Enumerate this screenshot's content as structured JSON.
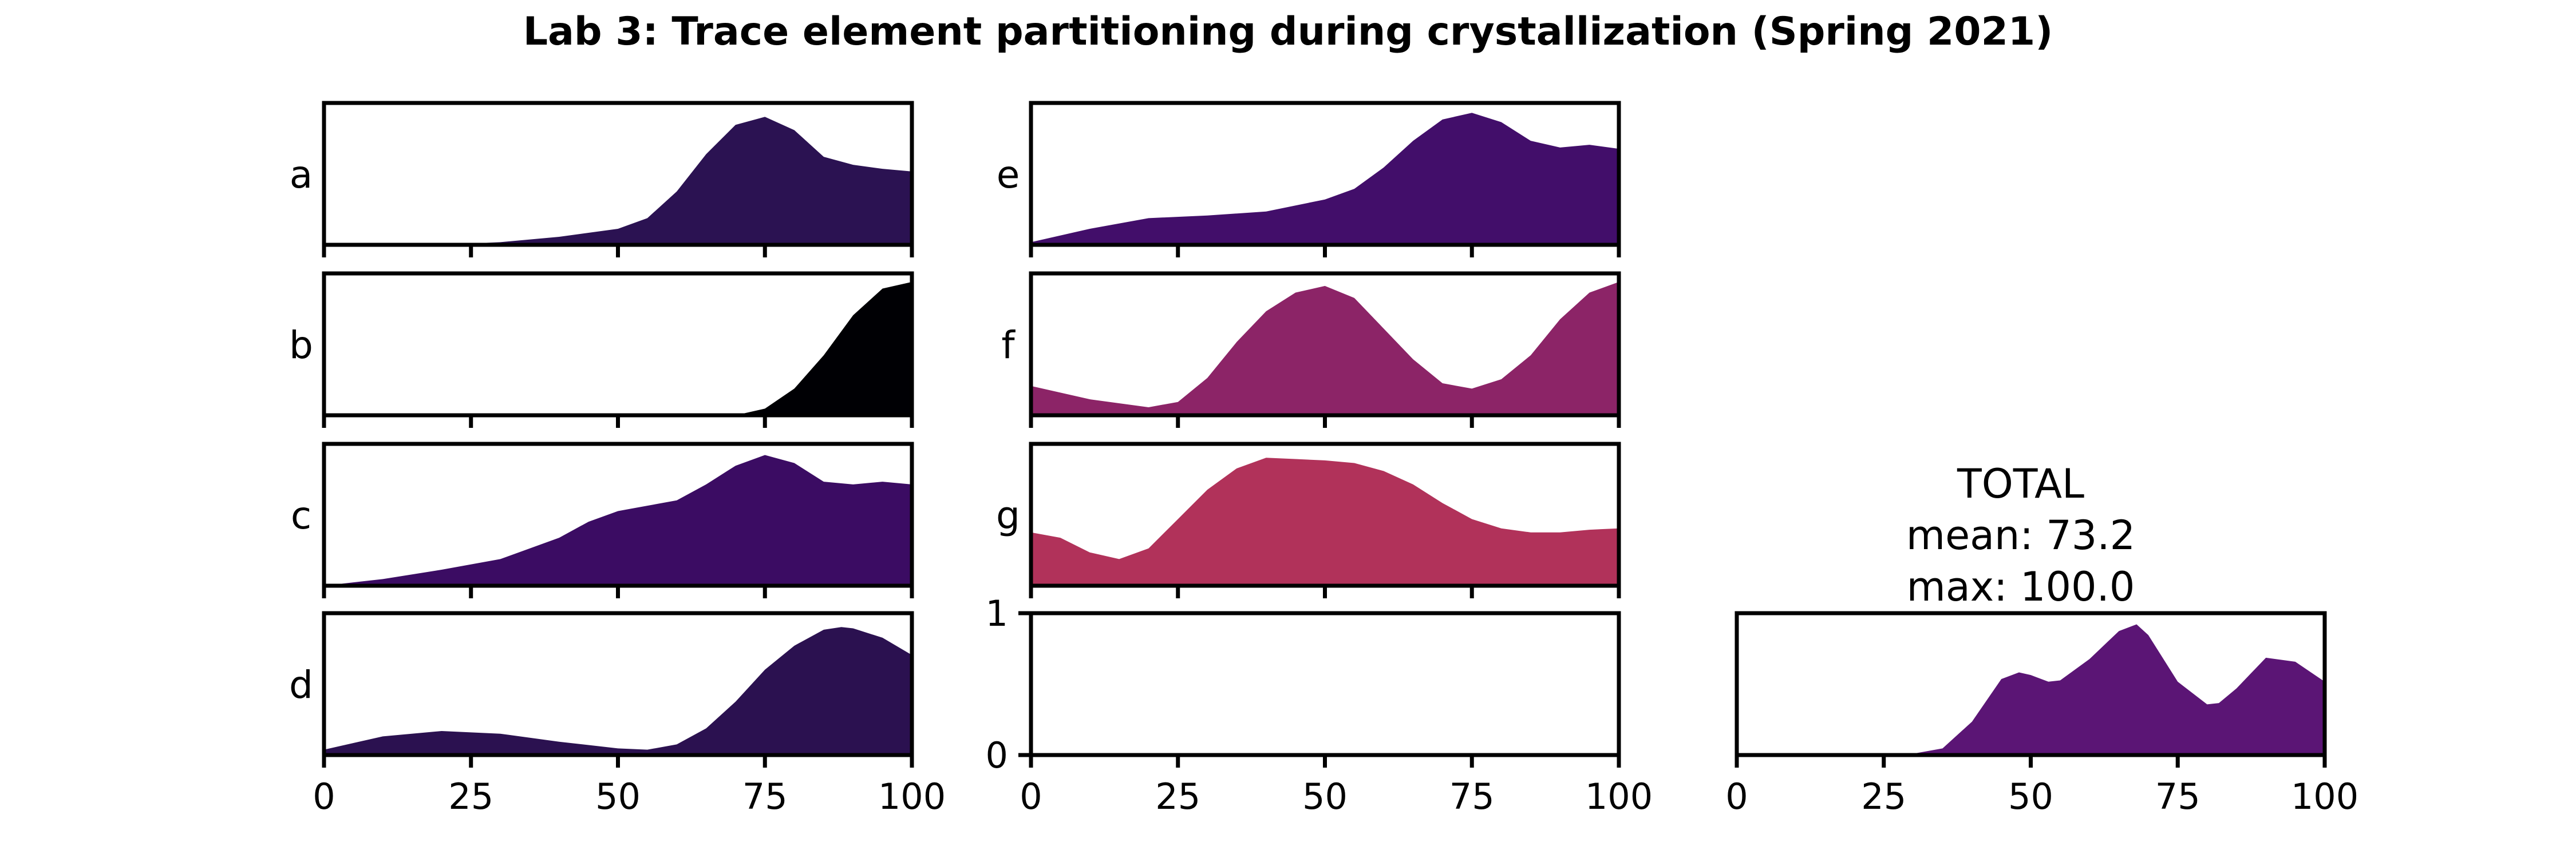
{
  "chart_data": {
    "type": "area",
    "title": "Lab 3: Trace element partitioning during crystallization (Spring 2021)",
    "xlim": [
      0,
      100
    ],
    "xticks": [
      0,
      25,
      50,
      75,
      100
    ],
    "panels": [
      {
        "label": "a",
        "color": "#2b1252",
        "x": [
          20,
          30,
          40,
          50,
          55,
          60,
          65,
          70,
          75,
          80,
          85,
          90,
          95,
          100
        ],
        "y": [
          0,
          0.02,
          0.06,
          0.12,
          0.2,
          0.4,
          0.68,
          0.9,
          0.96,
          0.86,
          0.66,
          0.6,
          0.57,
          0.55
        ]
      },
      {
        "label": "b",
        "color": "#000004",
        "x": [
          70,
          75,
          80,
          85,
          90,
          95,
          100
        ],
        "y": [
          0,
          0.05,
          0.2,
          0.45,
          0.75,
          0.95,
          1.0
        ]
      },
      {
        "label": "c",
        "color": "#3b0c63",
        "x": [
          0,
          10,
          20,
          30,
          40,
          45,
          50,
          55,
          60,
          65,
          70,
          75,
          80,
          85,
          90,
          95,
          100
        ],
        "y": [
          0,
          0.05,
          0.12,
          0.2,
          0.36,
          0.48,
          0.56,
          0.6,
          0.64,
          0.76,
          0.9,
          0.98,
          0.92,
          0.78,
          0.76,
          0.78,
          0.76
        ]
      },
      {
        "label": "d",
        "color": "#2b1150",
        "x": [
          0,
          10,
          20,
          30,
          40,
          50,
          55,
          60,
          65,
          70,
          75,
          80,
          85,
          88,
          90,
          95,
          100
        ],
        "y": [
          0.04,
          0.14,
          0.18,
          0.16,
          0.1,
          0.05,
          0.04,
          0.08,
          0.2,
          0.4,
          0.64,
          0.82,
          0.94,
          0.96,
          0.95,
          0.88,
          0.75
        ]
      },
      {
        "label": "e",
        "color": "#420e6a",
        "x": [
          0,
          10,
          20,
          30,
          40,
          50,
          55,
          60,
          65,
          70,
          75,
          80,
          85,
          90,
          95,
          100
        ],
        "y": [
          0.02,
          0.12,
          0.2,
          0.22,
          0.25,
          0.34,
          0.42,
          0.58,
          0.78,
          0.94,
          0.99,
          0.92,
          0.78,
          0.73,
          0.75,
          0.72
        ]
      },
      {
        "label": "f",
        "color": "#8c2467",
        "x": [
          0,
          10,
          20,
          25,
          30,
          35,
          40,
          45,
          50,
          55,
          60,
          65,
          70,
          75,
          80,
          85,
          90,
          95,
          100
        ],
        "y": [
          0.22,
          0.12,
          0.06,
          0.1,
          0.28,
          0.55,
          0.78,
          0.92,
          0.97,
          0.88,
          0.65,
          0.42,
          0.24,
          0.2,
          0.27,
          0.45,
          0.72,
          0.92,
          1.0
        ]
      },
      {
        "label": "g",
        "color": "#b1325a",
        "x": [
          0,
          5,
          10,
          15,
          20,
          25,
          30,
          35,
          40,
          45,
          50,
          55,
          60,
          65,
          70,
          75,
          80,
          85,
          90,
          95,
          100
        ],
        "y": [
          0.4,
          0.36,
          0.25,
          0.2,
          0.28,
          0.5,
          0.72,
          0.88,
          0.96,
          0.95,
          0.94,
          0.92,
          0.86,
          0.76,
          0.62,
          0.5,
          0.43,
          0.4,
          0.4,
          0.42,
          0.43
        ]
      },
      {
        "label": "",
        "color": "#5b1575",
        "x": [],
        "y": []
      }
    ],
    "ylim": [
      0,
      1
    ],
    "yticks": [
      0,
      1
    ],
    "total": {
      "lines": [
        "TOTAL",
        "mean: 73.2",
        "max: 100.0"
      ],
      "color": "#5b1575",
      "x": [
        28,
        30,
        35,
        40,
        45,
        48,
        50,
        53,
        55,
        60,
        65,
        68,
        70,
        75,
        80,
        82,
        85,
        90,
        95,
        100
      ],
      "y": [
        0,
        0.01,
        0.05,
        0.25,
        0.57,
        0.62,
        0.6,
        0.55,
        0.56,
        0.72,
        0.93,
        0.98,
        0.9,
        0.55,
        0.38,
        0.39,
        0.5,
        0.73,
        0.7,
        0.55
      ]
    }
  }
}
